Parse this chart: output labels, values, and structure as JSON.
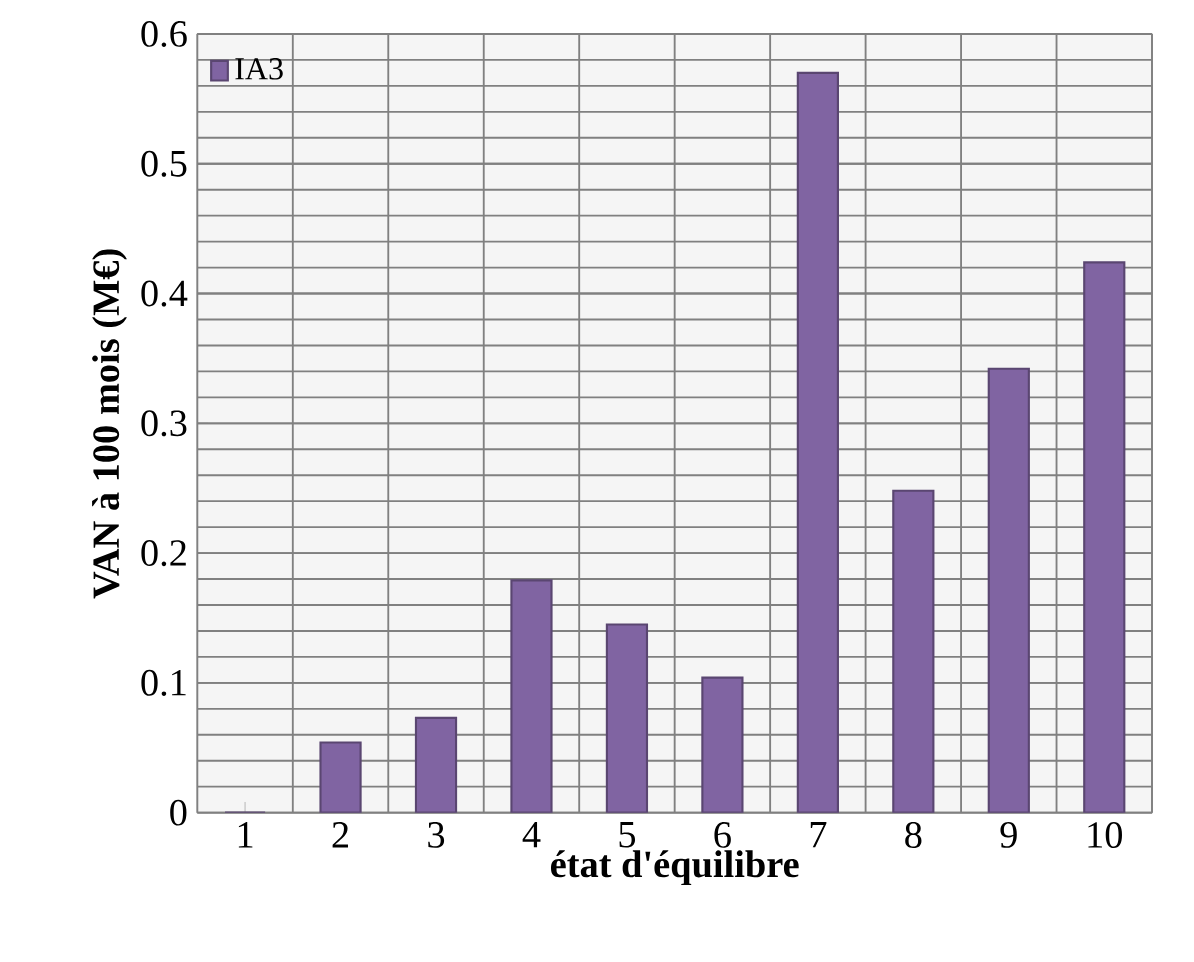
{
  "chart_data": {
    "type": "bar",
    "xlabel": "état d'équilibre",
    "ylabel": "VAN à 100 mois (M€)",
    "categories": [
      "1",
      "2",
      "3",
      "4",
      "5",
      "6",
      "7",
      "8",
      "9",
      "10"
    ],
    "series": [
      {
        "name": "IA3",
        "color": "#8064a2",
        "values": [
          0,
          0.054,
          0.073,
          0.179,
          0.145,
          0.104,
          0.57,
          0.248,
          0.342,
          0.424
        ]
      }
    ],
    "ylim": [
      0,
      0.6
    ],
    "yticks": [
      0,
      0.1,
      0.2,
      0.3,
      0.4,
      0.5,
      0.6
    ],
    "grid": true,
    "legend": "top left"
  }
}
